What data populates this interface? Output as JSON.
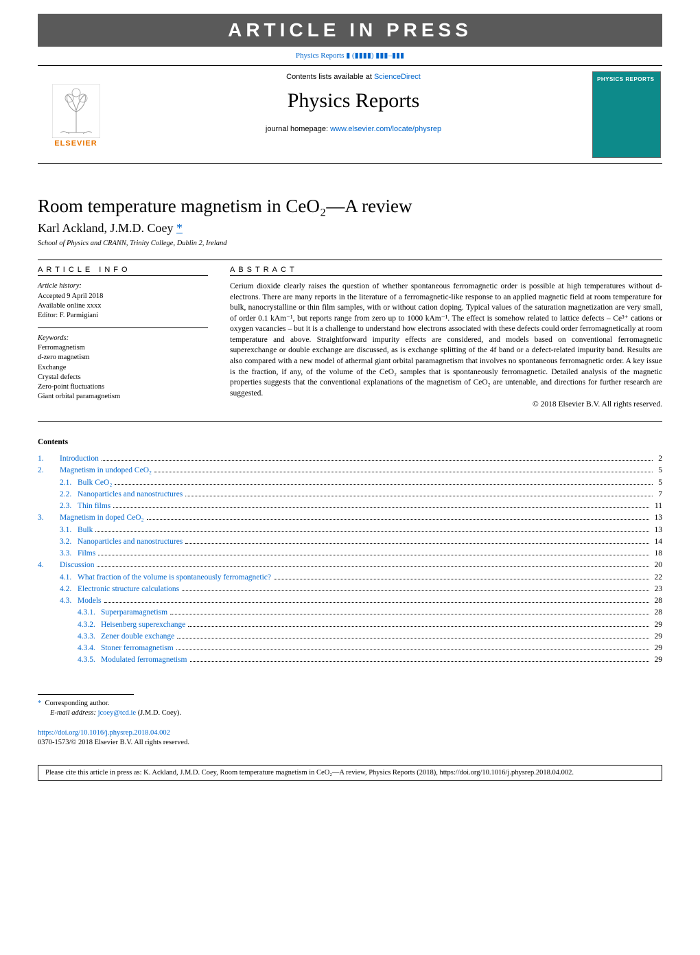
{
  "banner": "ARTICLE IN PRESS",
  "ref_link_pre": "Physics Reports",
  "ref_link_suf": " ▮ (▮▮▮▮) ▮▮▮–▮▮▮",
  "header": {
    "contents_pre": "Contents lists available at ",
    "contents_link": "ScienceDirect",
    "journal": "Physics Reports",
    "homepage_pre": "journal homepage: ",
    "homepage_url": "www.elsevier.com/locate/physrep",
    "publisher": "ELSEVIER",
    "cover_label": "PHYSICS REPORTS"
  },
  "title": "Room temperature magnetism in CeO₂—A review",
  "authors": "Karl Ackland, J.M.D. Coey",
  "corr_mark": "*",
  "affiliation": "School of Physics and CRANN, Trinity College, Dublin 2, Ireland",
  "info_h": "ARTICLE INFO",
  "abstract_h": "ABSTRACT",
  "history": {
    "label": "Article history:",
    "accepted": "Accepted 9 April 2018",
    "online": "Available online xxxx",
    "editor": "Editor: F. Parmigiani"
  },
  "keywords": {
    "label": "Keywords:",
    "items": [
      "Ferromagnetism",
      "d-zero magnetism",
      "Exchange",
      "Crystal defects",
      "Zero-point fluctuations",
      "Giant orbital paramagnetism"
    ]
  },
  "abstract": "Cerium dioxide clearly raises the question of whether spontaneous ferromagnetic order is possible at high temperatures without d- electrons. There are many reports in the literature of a ferromagnetic-like response to an applied magnetic field at room temperature for bulk, nanocrystalline or thin film samples, with or without cation doping. Typical values of the saturation magnetization are very small, of order 0.1 kAm⁻¹, but reports range from zero up to 1000 kAm⁻¹. The effect is somehow related to lattice defects – Ce³⁺ cations or oxygen vacancies – but it is a challenge to understand how electrons associated with these defects could order ferromagnetically at room temperature and above. Straightforward impurity effects are considered, and models based on conventional ferromagnetic superexchange or double exchange are discussed, as is exchange splitting of the 4f band or a defect-related impurity band. Results are also compared with a new model of athermal giant orbital paramagnetism that involves no spontaneous ferromagnetic order. A key issue is the fraction, if any, of the volume of the CeO₂ samples that is spontaneously ferromagnetic. Detailed analysis of the magnetic properties suggests that the conventional explanations of the magnetism of CeO₂ are untenable, and directions for further research are suggested.",
  "copyright": "© 2018 Elsevier B.V. All rights reserved.",
  "contents_h": "Contents",
  "toc": [
    {
      "lvl": 0,
      "num": "1.",
      "label": "Introduction",
      "page": "2",
      "link": true
    },
    {
      "lvl": 0,
      "num": "2.",
      "label": "Magnetism in undoped CeO₂",
      "page": "5",
      "link": false
    },
    {
      "lvl": 1,
      "num": "2.1.",
      "label": "Bulk CeO₂",
      "page": "5",
      "link": true
    },
    {
      "lvl": 1,
      "num": "2.2.",
      "label": "Nanoparticles and nanostructures",
      "page": "7",
      "link": true
    },
    {
      "lvl": 1,
      "num": "2.3.",
      "label": "Thin films",
      "page": "11",
      "link": true
    },
    {
      "lvl": 0,
      "num": "3.",
      "label": "Magnetism in doped CeO₂",
      "page": "13",
      "link": true
    },
    {
      "lvl": 1,
      "num": "3.1.",
      "label": "Bulk",
      "page": "13",
      "link": true
    },
    {
      "lvl": 1,
      "num": "3.2.",
      "label": "Nanoparticles and nanostructures",
      "page": "14",
      "link": true
    },
    {
      "lvl": 1,
      "num": "3.3.",
      "label": "Films",
      "page": "18",
      "link": true
    },
    {
      "lvl": 0,
      "num": "4.",
      "label": "Discussion",
      "page": "20",
      "link": true
    },
    {
      "lvl": 1,
      "num": "4.1.",
      "label": "What fraction of the volume is spontaneously ferromagnetic?",
      "page": "22",
      "link": true
    },
    {
      "lvl": 1,
      "num": "4.2.",
      "label": "Electronic structure calculations",
      "page": "23",
      "link": true
    },
    {
      "lvl": 1,
      "num": "4.3.",
      "label": "Models",
      "page": "28",
      "link": true
    },
    {
      "lvl": 2,
      "num": "4.3.1.",
      "label": "Superparamagnetism",
      "page": "28",
      "link": true
    },
    {
      "lvl": 2,
      "num": "4.3.2.",
      "label": "Heisenberg superexchange",
      "page": "29",
      "link": true
    },
    {
      "lvl": 2,
      "num": "4.3.3.",
      "label": "Zener double exchange",
      "page": "29",
      "link": true
    },
    {
      "lvl": 2,
      "num": "4.3.4.",
      "label": "Stoner ferromagnetism",
      "page": "29",
      "link": true
    },
    {
      "lvl": 2,
      "num": "4.3.5.",
      "label": "Modulated ferromagnetism",
      "page": "29",
      "link": true
    }
  ],
  "footnote": {
    "mark": "*",
    "text": "Corresponding author.",
    "email_label": "E-mail address: ",
    "email": "jcoey@tcd.ie",
    "email_who": " (J.M.D. Coey)."
  },
  "doi": {
    "url": "https://doi.org/10.1016/j.physrep.2018.04.002",
    "issn": "0370-1573/© 2018 Elsevier B.V. All rights reserved."
  },
  "cite_box": "Please cite this article in press as: K. Ackland, J.M.D. Coey, Room temperature magnetism in CeO₂—A review, Physics Reports (2018), https://doi.org/10.1016/j.physrep.2018.04.002."
}
